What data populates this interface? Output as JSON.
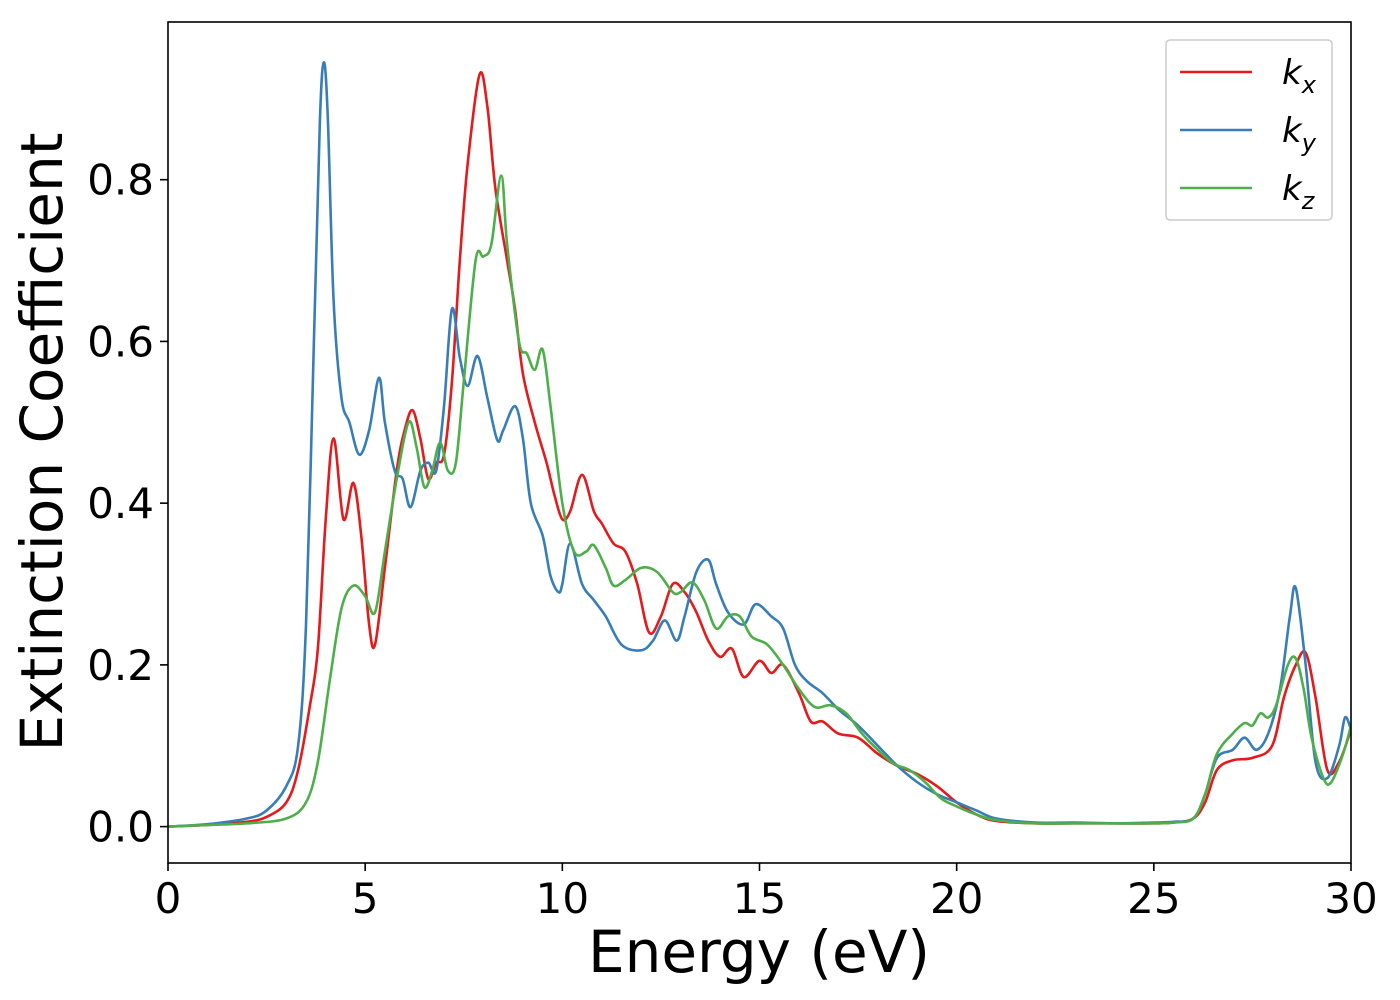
{
  "chart_data": {
    "type": "line",
    "xlabel": "Energy (eV)",
    "ylabel": "Extinction Coefficient",
    "xlim": [
      0,
      30
    ],
    "ylim": [
      -0.045,
      0.995
    ],
    "xticks": [
      0,
      5,
      10,
      15,
      20,
      25,
      30
    ],
    "yticks": [
      0.0,
      0.2,
      0.4,
      0.6,
      0.8
    ],
    "xtick_labels": [
      "0",
      "5",
      "10",
      "15",
      "20",
      "25",
      "30"
    ],
    "ytick_labels": [
      "0.0",
      "0.2",
      "0.4",
      "0.6",
      "0.8"
    ],
    "grid": false,
    "legend_position": "top-right",
    "series": [
      {
        "name": "k_x",
        "label_base": "k",
        "label_sub": "x",
        "color": "#e41a1c",
        "points": [
          [
            0,
            0.0
          ],
          [
            1,
            0.002
          ],
          [
            2,
            0.006
          ],
          [
            2.5,
            0.012
          ],
          [
            3,
            0.03
          ],
          [
            3.3,
            0.07
          ],
          [
            3.6,
            0.15
          ],
          [
            3.8,
            0.22
          ],
          [
            4.0,
            0.38
          ],
          [
            4.2,
            0.48
          ],
          [
            4.45,
            0.38
          ],
          [
            4.7,
            0.425
          ],
          [
            4.9,
            0.36
          ],
          [
            5.1,
            0.25
          ],
          [
            5.25,
            0.225
          ],
          [
            5.5,
            0.32
          ],
          [
            5.8,
            0.44
          ],
          [
            6.0,
            0.49
          ],
          [
            6.2,
            0.515
          ],
          [
            6.4,
            0.48
          ],
          [
            6.6,
            0.43
          ],
          [
            6.8,
            0.45
          ],
          [
            7.0,
            0.46
          ],
          [
            7.2,
            0.55
          ],
          [
            7.4,
            0.7
          ],
          [
            7.6,
            0.82
          ],
          [
            7.9,
            0.93
          ],
          [
            8.1,
            0.89
          ],
          [
            8.3,
            0.79
          ],
          [
            8.6,
            0.7
          ],
          [
            8.8,
            0.64
          ],
          [
            9.0,
            0.56
          ],
          [
            9.3,
            0.5
          ],
          [
            9.6,
            0.45
          ],
          [
            9.8,
            0.41
          ],
          [
            10.0,
            0.38
          ],
          [
            10.2,
            0.39
          ],
          [
            10.5,
            0.435
          ],
          [
            10.8,
            0.39
          ],
          [
            11.0,
            0.375
          ],
          [
            11.3,
            0.35
          ],
          [
            11.6,
            0.34
          ],
          [
            11.9,
            0.3
          ],
          [
            12.2,
            0.24
          ],
          [
            12.5,
            0.26
          ],
          [
            12.8,
            0.3
          ],
          [
            13.1,
            0.29
          ],
          [
            13.4,
            0.265
          ],
          [
            13.7,
            0.23
          ],
          [
            14.0,
            0.21
          ],
          [
            14.3,
            0.22
          ],
          [
            14.6,
            0.185
          ],
          [
            15.0,
            0.205
          ],
          [
            15.3,
            0.19
          ],
          [
            15.6,
            0.2
          ],
          [
            16.0,
            0.165
          ],
          [
            16.3,
            0.13
          ],
          [
            16.6,
            0.13
          ],
          [
            17.0,
            0.115
          ],
          [
            17.5,
            0.11
          ],
          [
            18.0,
            0.09
          ],
          [
            18.5,
            0.075
          ],
          [
            19.0,
            0.065
          ],
          [
            19.5,
            0.05
          ],
          [
            20.0,
            0.03
          ],
          [
            20.5,
            0.015
          ],
          [
            21.0,
            0.007
          ],
          [
            22.0,
            0.004
          ],
          [
            23.0,
            0.004
          ],
          [
            24.0,
            0.004
          ],
          [
            25.0,
            0.004
          ],
          [
            25.5,
            0.005
          ],
          [
            26.0,
            0.01
          ],
          [
            26.3,
            0.03
          ],
          [
            26.6,
            0.07
          ],
          [
            27.0,
            0.082
          ],
          [
            27.5,
            0.085
          ],
          [
            28.0,
            0.1
          ],
          [
            28.3,
            0.16
          ],
          [
            28.6,
            0.2
          ],
          [
            28.85,
            0.215
          ],
          [
            29.1,
            0.16
          ],
          [
            29.4,
            0.07
          ],
          [
            29.7,
            0.08
          ],
          [
            30.0,
            0.12
          ]
        ]
      },
      {
        "name": "k_y",
        "label_base": "k",
        "label_sub": "y",
        "color": "#377eb8",
        "points": [
          [
            0,
            0.0
          ],
          [
            1,
            0.003
          ],
          [
            2,
            0.01
          ],
          [
            2.5,
            0.02
          ],
          [
            3.0,
            0.05
          ],
          [
            3.3,
            0.1
          ],
          [
            3.5,
            0.25
          ],
          [
            3.7,
            0.6
          ],
          [
            3.85,
            0.87
          ],
          [
            3.95,
            0.945
          ],
          [
            4.05,
            0.88
          ],
          [
            4.2,
            0.65
          ],
          [
            4.4,
            0.53
          ],
          [
            4.6,
            0.5
          ],
          [
            4.85,
            0.46
          ],
          [
            5.1,
            0.49
          ],
          [
            5.35,
            0.555
          ],
          [
            5.5,
            0.5
          ],
          [
            5.75,
            0.44
          ],
          [
            5.95,
            0.43
          ],
          [
            6.15,
            0.395
          ],
          [
            6.4,
            0.44
          ],
          [
            6.6,
            0.45
          ],
          [
            6.8,
            0.44
          ],
          [
            7.0,
            0.52
          ],
          [
            7.2,
            0.64
          ],
          [
            7.4,
            0.58
          ],
          [
            7.6,
            0.545
          ],
          [
            7.85,
            0.582
          ],
          [
            8.1,
            0.53
          ],
          [
            8.35,
            0.478
          ],
          [
            8.5,
            0.49
          ],
          [
            8.8,
            0.52
          ],
          [
            9.0,
            0.48
          ],
          [
            9.2,
            0.4
          ],
          [
            9.5,
            0.36
          ],
          [
            9.7,
            0.31
          ],
          [
            9.9,
            0.29
          ],
          [
            10.0,
            0.3
          ],
          [
            10.2,
            0.35
          ],
          [
            10.5,
            0.3
          ],
          [
            10.8,
            0.28
          ],
          [
            11.1,
            0.26
          ],
          [
            11.5,
            0.225
          ],
          [
            12.0,
            0.218
          ],
          [
            12.3,
            0.23
          ],
          [
            12.6,
            0.255
          ],
          [
            12.9,
            0.23
          ],
          [
            13.1,
            0.26
          ],
          [
            13.4,
            0.315
          ],
          [
            13.7,
            0.33
          ],
          [
            13.9,
            0.3
          ],
          [
            14.2,
            0.265
          ],
          [
            14.6,
            0.25
          ],
          [
            14.9,
            0.275
          ],
          [
            15.3,
            0.26
          ],
          [
            15.6,
            0.245
          ],
          [
            15.9,
            0.2
          ],
          [
            16.2,
            0.18
          ],
          [
            16.6,
            0.165
          ],
          [
            17.0,
            0.145
          ],
          [
            17.5,
            0.125
          ],
          [
            18.0,
            0.1
          ],
          [
            18.5,
            0.075
          ],
          [
            19.0,
            0.055
          ],
          [
            19.5,
            0.04
          ],
          [
            20.0,
            0.03
          ],
          [
            20.5,
            0.02
          ],
          [
            21.0,
            0.01
          ],
          [
            22.0,
            0.005
          ],
          [
            23.0,
            0.005
          ],
          [
            24.0,
            0.004
          ],
          [
            25.0,
            0.005
          ],
          [
            25.5,
            0.006
          ],
          [
            26.0,
            0.01
          ],
          [
            26.3,
            0.04
          ],
          [
            26.6,
            0.085
          ],
          [
            27.0,
            0.095
          ],
          [
            27.3,
            0.11
          ],
          [
            27.6,
            0.095
          ],
          [
            27.9,
            0.115
          ],
          [
            28.2,
            0.17
          ],
          [
            28.45,
            0.26
          ],
          [
            28.6,
            0.295
          ],
          [
            28.85,
            0.2
          ],
          [
            29.1,
            0.08
          ],
          [
            29.4,
            0.06
          ],
          [
            29.7,
            0.1
          ],
          [
            29.85,
            0.135
          ],
          [
            30.0,
            0.12
          ]
        ]
      },
      {
        "name": "k_z",
        "label_base": "k",
        "label_sub": "z",
        "color": "#4daf4a",
        "points": [
          [
            0,
            0.0
          ],
          [
            1,
            0.002
          ],
          [
            2,
            0.004
          ],
          [
            3,
            0.01
          ],
          [
            3.5,
            0.03
          ],
          [
            3.8,
            0.08
          ],
          [
            4.1,
            0.18
          ],
          [
            4.4,
            0.27
          ],
          [
            4.7,
            0.298
          ],
          [
            5.0,
            0.285
          ],
          [
            5.25,
            0.265
          ],
          [
            5.5,
            0.34
          ],
          [
            5.8,
            0.43
          ],
          [
            6.1,
            0.5
          ],
          [
            6.3,
            0.47
          ],
          [
            6.5,
            0.42
          ],
          [
            6.7,
            0.44
          ],
          [
            6.9,
            0.475
          ],
          [
            7.1,
            0.44
          ],
          [
            7.3,
            0.45
          ],
          [
            7.5,
            0.55
          ],
          [
            7.8,
            0.7
          ],
          [
            8.0,
            0.705
          ],
          [
            8.2,
            0.72
          ],
          [
            8.45,
            0.805
          ],
          [
            8.6,
            0.72
          ],
          [
            8.9,
            0.6
          ],
          [
            9.1,
            0.585
          ],
          [
            9.3,
            0.565
          ],
          [
            9.5,
            0.59
          ],
          [
            9.7,
            0.52
          ],
          [
            10.0,
            0.4
          ],
          [
            10.3,
            0.34
          ],
          [
            10.6,
            0.34
          ],
          [
            10.8,
            0.348
          ],
          [
            11.1,
            0.32
          ],
          [
            11.3,
            0.298
          ],
          [
            11.6,
            0.305
          ],
          [
            12.0,
            0.32
          ],
          [
            12.4,
            0.315
          ],
          [
            12.8,
            0.29
          ],
          [
            13.0,
            0.29
          ],
          [
            13.3,
            0.302
          ],
          [
            13.6,
            0.28
          ],
          [
            13.9,
            0.245
          ],
          [
            14.2,
            0.26
          ],
          [
            14.5,
            0.26
          ],
          [
            14.8,
            0.235
          ],
          [
            15.2,
            0.225
          ],
          [
            15.6,
            0.2
          ],
          [
            16.0,
            0.17
          ],
          [
            16.4,
            0.148
          ],
          [
            16.8,
            0.15
          ],
          [
            17.2,
            0.14
          ],
          [
            17.6,
            0.115
          ],
          [
            18.0,
            0.095
          ],
          [
            18.4,
            0.078
          ],
          [
            18.8,
            0.07
          ],
          [
            19.2,
            0.055
          ],
          [
            19.6,
            0.035
          ],
          [
            20.0,
            0.025
          ],
          [
            20.5,
            0.015
          ],
          [
            21.0,
            0.008
          ],
          [
            22.0,
            0.004
          ],
          [
            23.0,
            0.004
          ],
          [
            24.0,
            0.004
          ],
          [
            25.0,
            0.004
          ],
          [
            25.5,
            0.005
          ],
          [
            26.0,
            0.01
          ],
          [
            26.3,
            0.04
          ],
          [
            26.6,
            0.09
          ],
          [
            27.0,
            0.115
          ],
          [
            27.3,
            0.128
          ],
          [
            27.5,
            0.125
          ],
          [
            27.7,
            0.14
          ],
          [
            27.9,
            0.135
          ],
          [
            28.1,
            0.15
          ],
          [
            28.4,
            0.2
          ],
          [
            28.6,
            0.208
          ],
          [
            28.8,
            0.17
          ],
          [
            29.0,
            0.11
          ],
          [
            29.3,
            0.06
          ],
          [
            29.5,
            0.055
          ],
          [
            29.8,
            0.09
          ],
          [
            30.0,
            0.125
          ]
        ]
      }
    ]
  }
}
